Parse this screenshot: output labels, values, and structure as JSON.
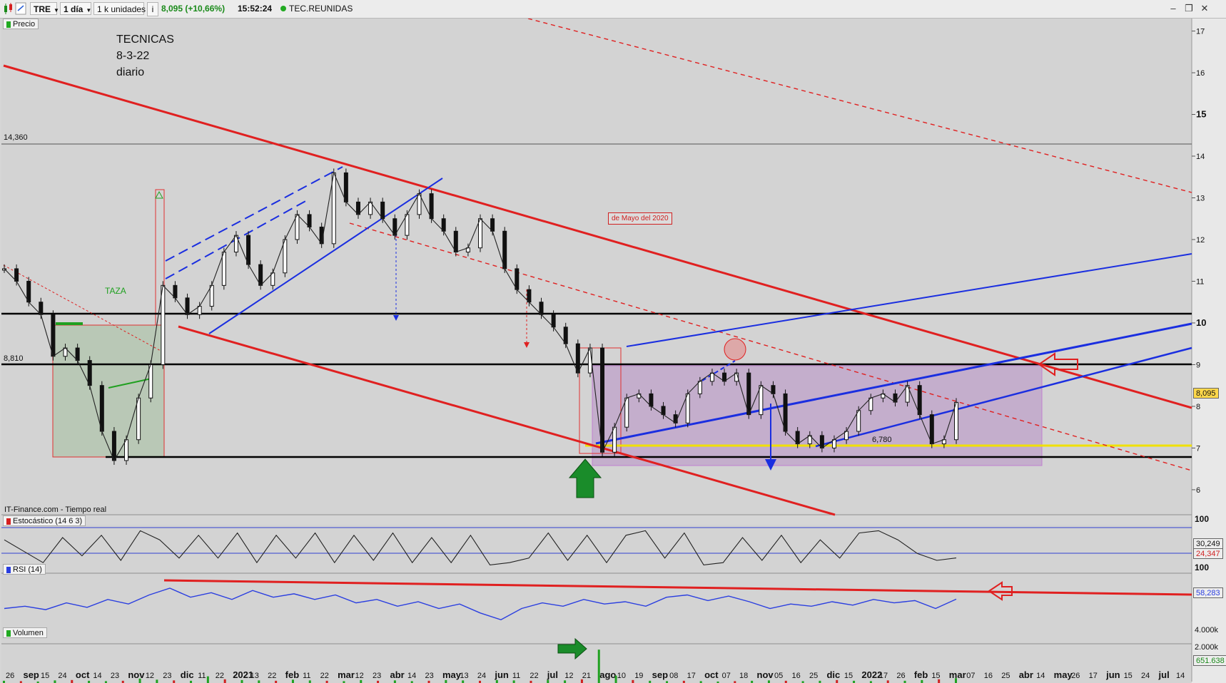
{
  "toolbar": {
    "symbol": "TRE",
    "interval": "1 día",
    "units": "1 k unidades",
    "last_price": "8,095 (+10,66%)",
    "time": "15:52:24",
    "company": "TEC.REUNIDAS",
    "colors": {
      "up": "#1a8a1a",
      "live_dot": "#22aa22"
    }
  },
  "main_panel": {
    "label": "Precio",
    "source_label": "IT-Finance.com - Tiempo real",
    "notes": [
      "TECNICAS",
      "8-3-22",
      "diario"
    ],
    "pattern_label": "TAZA",
    "box_note": "de Mayo del 2020",
    "level_labels": {
      "high_line": "14,360",
      "mid_line": "8,810",
      "low_tag": "6,780"
    },
    "last_price_tag": "8,095"
  },
  "indicators": {
    "stochastic": {
      "label": "Estocástico (14 6 3)",
      "tags": [
        "30,249",
        "24,347"
      ],
      "axis_top": "100"
    },
    "rsi": {
      "label": "RSI (14)",
      "tag": "58,283",
      "axis_top": "100"
    },
    "volume": {
      "label": "Volumen",
      "tag": "651.638",
      "axis": [
        "4.000k",
        "2.000k"
      ]
    }
  },
  "chart_data": {
    "type": "line",
    "title": "",
    "ylim": [
      5.4,
      17.3
    ],
    "y_ticks": [
      17,
      16,
      15,
      14,
      13,
      12,
      11,
      10,
      9,
      8,
      7,
      6
    ],
    "x_ticks": [
      "26",
      "sep",
      "15",
      "24",
      "oct",
      "14",
      "23",
      "nov",
      "12",
      "23",
      "dic",
      "11",
      "22",
      "2021",
      "13",
      "22",
      "feb",
      "11",
      "22",
      "mar",
      "12",
      "23",
      "abr",
      "14",
      "23",
      "may",
      "13",
      "24",
      "jun",
      "11",
      "22",
      "jul",
      "12",
      "21",
      "ago",
      "10",
      "19",
      "sep",
      "08",
      "17",
      "oct",
      "07",
      "18",
      "nov",
      "05",
      "16",
      "25",
      "dic",
      "15",
      "2022",
      "17",
      "26",
      "feb",
      "15",
      "mar",
      "07",
      "16",
      "25",
      "abr",
      "14",
      "may",
      "26",
      "17",
      "jun",
      "15",
      "24",
      "jul",
      "14"
    ],
    "series": [
      {
        "values": [
          11.3,
          11.0,
          10.5,
          10.2,
          9.2,
          9.4,
          9.1,
          8.5,
          7.4,
          6.7,
          7.2,
          8.2,
          9.0,
          10.9,
          10.6,
          10.2,
          10.4,
          10.9,
          11.7,
          12.1,
          11.4,
          10.9,
          11.2,
          12.0,
          12.6,
          12.3,
          11.9,
          13.6,
          12.9,
          12.6,
          12.9,
          12.5,
          12.1,
          12.6,
          13.1,
          12.5,
          12.2,
          11.7,
          11.8,
          12.5,
          12.2,
          11.3,
          10.8,
          10.5,
          10.2,
          9.9,
          9.5,
          8.8,
          9.4,
          6.9,
          7.5,
          8.2,
          8.3,
          8.0,
          7.8,
          7.6,
          8.3,
          8.6,
          8.8,
          8.6,
          8.8,
          7.8,
          8.5,
          8.3,
          7.4,
          7.1,
          7.3,
          7.0,
          7.2,
          7.4,
          7.9,
          8.2,
          8.3,
          8.1,
          8.5,
          7.8,
          7.1,
          7.2,
          8.095
        ]
      }
    ],
    "stochastic": {
      "ylim": [
        0,
        100
      ],
      "values": [
        70,
        45,
        20,
        75,
        35,
        80,
        25,
        90,
        70,
        30,
        80,
        30,
        85,
        20,
        80,
        30,
        85,
        20,
        80,
        25,
        85,
        20,
        75,
        20,
        80,
        15,
        20,
        30,
        85,
        25,
        80,
        20,
        80,
        90,
        30,
        85,
        15,
        20,
        75,
        25,
        80,
        20,
        70,
        30,
        85,
        90,
        70,
        40,
        25,
        30.249
      ]
    },
    "rsi": {
      "ylim": [
        0,
        100
      ],
      "values": [
        50,
        52,
        49,
        55,
        51,
        58,
        54,
        62,
        68,
        60,
        64,
        58,
        66,
        60,
        63,
        58,
        62,
        55,
        58,
        52,
        56,
        50,
        54,
        46,
        40,
        50,
        55,
        52,
        58,
        54,
        56,
        52,
        60,
        62,
        57,
        61,
        56,
        50,
        54,
        52,
        56,
        53,
        58,
        55,
        57,
        50,
        58.283
      ]
    },
    "volume": {
      "ylim": [
        0,
        5000
      ],
      "unit": "k",
      "values": [
        300,
        250,
        200,
        350,
        400,
        300,
        250,
        300,
        600,
        450,
        350,
        300,
        900,
        500,
        400,
        350,
        300,
        450,
        350,
        300,
        250,
        400,
        300,
        350,
        250,
        300,
        400,
        350,
        300,
        400,
        350,
        300,
        400,
        350,
        500,
        4500,
        1000,
        400,
        300,
        250,
        300,
        250,
        200,
        250,
        300,
        350,
        300,
        250,
        300,
        400,
        300,
        250,
        350,
        300,
        400,
        500,
        651.638
      ]
    }
  }
}
